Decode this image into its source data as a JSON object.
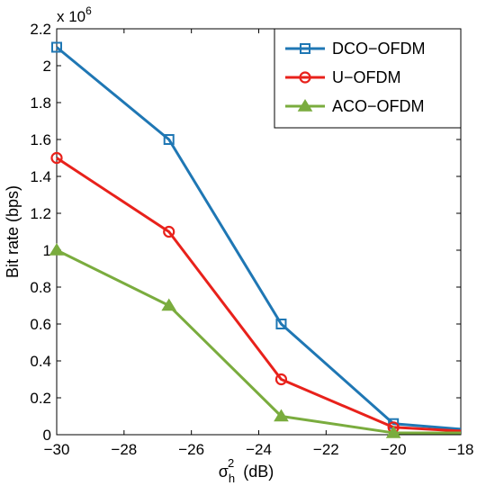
{
  "chart_data": {
    "type": "line",
    "x": [
      -30,
      -26.667,
      -23.333,
      -20,
      -18
    ],
    "series": [
      {
        "name": "DCO−OFDM",
        "color": "#1f77b4",
        "marker": "square",
        "values": [
          2.1,
          1.6,
          0.6,
          0.06,
          0.03
        ]
      },
      {
        "name": "U−OFDM",
        "color": "#e8211b",
        "marker": "circle",
        "values": [
          1.5,
          1.1,
          0.3,
          0.04,
          0.02
        ]
      },
      {
        "name": "ACO−OFDM",
        "color": "#7aac3e",
        "marker": "triangle",
        "values": [
          1.0,
          0.7,
          0.1,
          0.01,
          0.01
        ]
      }
    ],
    "xlim": [
      -30,
      -18
    ],
    "ylim": [
      0,
      2.2
    ],
    "xticks": [
      {
        "value": -30,
        "label": "−30"
      },
      {
        "value": -28,
        "label": "−28"
      },
      {
        "value": -26,
        "label": "−26"
      },
      {
        "value": -24,
        "label": "−24"
      },
      {
        "value": -22,
        "label": "−22"
      },
      {
        "value": -20,
        "label": "−20"
      },
      {
        "value": -18,
        "label": "−18"
      }
    ],
    "yticks": [
      {
        "value": 0,
        "label": "0"
      },
      {
        "value": 0.2,
        "label": "0.2"
      },
      {
        "value": 0.4,
        "label": "0.4"
      },
      {
        "value": 0.6,
        "label": "0.6"
      },
      {
        "value": 0.8,
        "label": "0.8"
      },
      {
        "value": 1.0,
        "label": "1"
      },
      {
        "value": 1.2,
        "label": "1.2"
      },
      {
        "value": 1.4,
        "label": "1.4"
      },
      {
        "value": 1.6,
        "label": "1.6"
      },
      {
        "value": 1.8,
        "label": "1.8"
      },
      {
        "value": 2.0,
        "label": "2"
      },
      {
        "value": 2.2,
        "label": "2.2"
      }
    ],
    "ylabel": "Bit rate (bps)",
    "xlabel": {
      "main": "σ",
      "sub": "h",
      "sup": "2",
      "unit": "(dB)"
    },
    "y_exponent": {
      "base": "x 10",
      "power": "6"
    },
    "grid": false,
    "legend_position": "top-right"
  }
}
